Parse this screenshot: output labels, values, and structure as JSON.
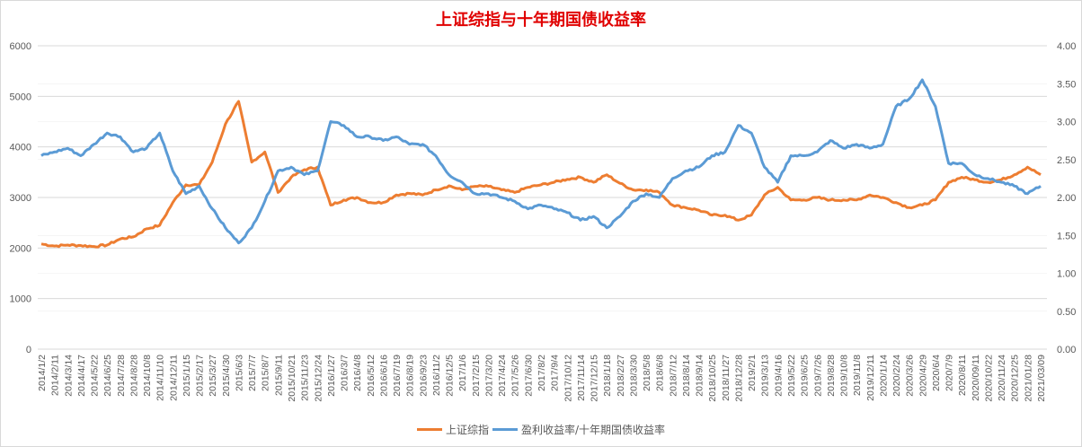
{
  "title": "上证综指与十年期国债收益率",
  "colors": {
    "series1": "#ed7d31",
    "series2": "#5b9bd5",
    "title": "#e00000",
    "grid": "#d9d9d9",
    "axis_text": "#595959"
  },
  "legend": [
    {
      "label": "上证综指",
      "color": "#ed7d31"
    },
    {
      "label": "盈利收益率/十年期国债收益率",
      "color": "#5b9bd5"
    }
  ],
  "chart_data": {
    "type": "line",
    "title": "上证综指与十年期国债收益率",
    "xlabel": "",
    "ylabel": "",
    "y_left": {
      "ticks": [
        0,
        1000,
        2000,
        3000,
        4000,
        5000,
        6000
      ],
      "range": [
        0,
        6000
      ]
    },
    "y_right": {
      "ticks": [
        "0.00",
        "0.50",
        "1.00",
        "1.50",
        "2.00",
        "2.50",
        "3.00",
        "3.50",
        "4.00"
      ],
      "range": [
        0,
        4
      ]
    },
    "grid": true,
    "legend_position": "bottom",
    "categories": [
      "2014/1/2",
      "2014/2/11",
      "2014/3/14",
      "2014/4/17",
      "2014/5/22",
      "2014/6/25",
      "2014/7/28",
      "2014/8/28",
      "2014/10/8",
      "2014/11/10",
      "2014/12/11",
      "2015/1/15",
      "2015/2/17",
      "2015/3/27",
      "2015/4/30",
      "2015/6/3",
      "2015/7/7",
      "2015/8/7",
      "2015/9/11",
      "2015/10/21",
      "2015/11/23",
      "2015/12/24",
      "2016/1/27",
      "2016/3/7",
      "2016/4/8",
      "2016/5/12",
      "2016/6/16",
      "2016/7/19",
      "2016/8/19",
      "2016/9/23",
      "2016/11/2",
      "2016/12/5",
      "2017/1/6",
      "2017/2/15",
      "2017/3/20",
      "2017/4/24",
      "2017/5/26",
      "2017/6/30",
      "2017/8/2",
      "2017/9/4",
      "2017/10/12",
      "2017/11/14",
      "2017/12/15",
      "2018/1/18",
      "2018/2/27",
      "2018/3/30",
      "2018/5/8",
      "2018/6/8",
      "2018/7/12",
      "2018/8/14",
      "2018/9/14",
      "2018/10/25",
      "2018/11/27",
      "2018/12/28",
      "2019/2/1",
      "2019/3/13",
      "2019/4/16",
      "2019/5/22",
      "2019/6/25",
      "2019/7/26",
      "2019/8/28",
      "2019/10/8",
      "2019/11/8",
      "2019/12/11",
      "2020/1/14",
      "2020/2/24",
      "2020/3/26",
      "2020/4/29",
      "2020/6/4",
      "2020/7/9",
      "2020/8/11",
      "2020/09/11",
      "2020/10/22",
      "2020/11/24",
      "2020/12/25",
      "2021/01/28",
      "2021/03/09"
    ],
    "series": [
      {
        "name": "上证综指",
        "axis": "left",
        "color": "#ed7d31",
        "values": [
          2080,
          2040,
          2060,
          2050,
          2030,
          2060,
          2180,
          2220,
          2380,
          2450,
          2900,
          3250,
          3250,
          3700,
          4450,
          4900,
          3700,
          3900,
          3100,
          3400,
          3550,
          3600,
          2850,
          2950,
          3000,
          2900,
          2900,
          3050,
          3080,
          3050,
          3150,
          3230,
          3150,
          3220,
          3220,
          3150,
          3100,
          3200,
          3250,
          3300,
          3360,
          3400,
          3300,
          3450,
          3280,
          3150,
          3150,
          3100,
          2850,
          2800,
          2750,
          2650,
          2650,
          2550,
          2650,
          3050,
          3200,
          2950,
          2950,
          3000,
          2950,
          2950,
          2950,
          3050,
          3000,
          2900,
          2800,
          2850,
          2950,
          3300,
          3400,
          3350,
          3300,
          3350,
          3450,
          3600,
          3450
        ]
      },
      {
        "name": "盈利收益率/十年期国债收益率",
        "axis": "right",
        "color": "#5b9bd5",
        "values": [
          2.55,
          2.6,
          2.65,
          2.55,
          2.7,
          2.85,
          2.8,
          2.6,
          2.65,
          2.85,
          2.35,
          2.05,
          2.15,
          1.85,
          1.6,
          1.4,
          1.6,
          1.95,
          2.35,
          2.4,
          2.3,
          2.35,
          3.0,
          2.95,
          2.8,
          2.8,
          2.75,
          2.8,
          2.7,
          2.7,
          2.55,
          2.3,
          2.2,
          2.05,
          2.05,
          2.0,
          1.95,
          1.85,
          1.9,
          1.85,
          1.8,
          1.7,
          1.75,
          1.6,
          1.75,
          1.95,
          2.05,
          2.0,
          2.25,
          2.35,
          2.4,
          2.55,
          2.6,
          2.95,
          2.85,
          2.4,
          2.2,
          2.55,
          2.55,
          2.6,
          2.75,
          2.65,
          2.7,
          2.65,
          2.7,
          3.2,
          3.3,
          3.55,
          3.2,
          2.45,
          2.45,
          2.3,
          2.25,
          2.2,
          2.15,
          2.05,
          2.15
        ]
      }
    ]
  }
}
